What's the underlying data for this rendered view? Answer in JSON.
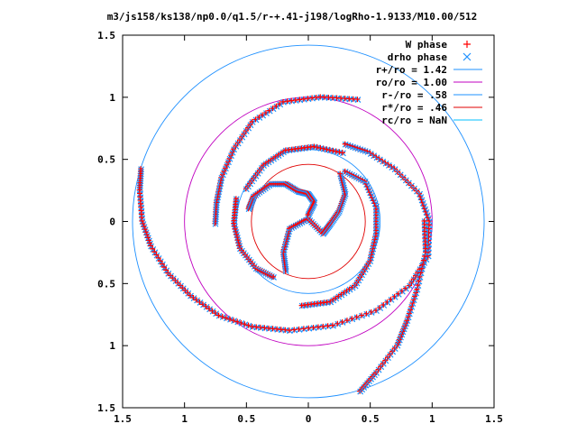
{
  "chart_data": {
    "type": "scatter",
    "title": "m3/js158/ks138/np0.0/q1.5/r-+.41-j198/logRho-1.9133/M10.00/512",
    "xlabel": "",
    "ylabel": "",
    "xlim": [
      -1.5,
      1.5
    ],
    "ylim": [
      -1.5,
      1.5
    ],
    "x_ticks": [
      -1.5,
      -1,
      -0.5,
      0,
      0.5,
      1,
      1.5
    ],
    "y_ticks": [
      -1.5,
      -1,
      -0.5,
      0,
      0.5,
      1,
      1.5
    ],
    "x_tick_labels": [
      "1.5",
      "1",
      "0.5",
      "0",
      "0.5",
      "1",
      "1.5"
    ],
    "y_tick_labels": [
      "1.5",
      "1",
      "0.5",
      "0",
      "0.5",
      "1",
      "1.5"
    ],
    "grid": false,
    "legend_position": "top-right",
    "series": [
      {
        "name": "W phase",
        "marker": "+",
        "color": "#ff0000"
      },
      {
        "name": "drho phase",
        "marker": "x",
        "color": "#1e90ff"
      }
    ],
    "circles": [
      {
        "label": "r+/ro = 1.42",
        "radius": 1.42,
        "color": "#1e90ff"
      },
      {
        "label": "ro/ro = 1.00",
        "radius": 1.0,
        "color": "#c000c0"
      },
      {
        "label": "r-/ro = .58",
        "radius": 0.58,
        "color": "#1e90ff"
      },
      {
        "label": "r*/ro = .46",
        "radius": 0.46,
        "color": "#e00000"
      },
      {
        "label": "rc/ro = NaN",
        "radius": null,
        "color": "#00bfff"
      }
    ],
    "arms": [
      {
        "points": [
          [
            -1.35,
            0.42
          ],
          [
            -1.36,
            0.25
          ],
          [
            -1.34,
            0.0
          ],
          [
            -1.27,
            -0.2
          ],
          [
            -1.13,
            -0.42
          ],
          [
            -0.95,
            -0.6
          ],
          [
            -0.72,
            -0.76
          ],
          [
            -0.45,
            -0.85
          ],
          [
            -0.15,
            -0.88
          ],
          [
            0.2,
            -0.84
          ],
          [
            0.55,
            -0.72
          ],
          [
            0.82,
            -0.52
          ],
          [
            0.97,
            -0.28
          ],
          [
            0.98,
            0.0
          ],
          [
            0.9,
            0.22
          ],
          [
            0.7,
            0.42
          ],
          [
            0.48,
            0.56
          ],
          [
            0.3,
            0.62
          ]
        ]
      },
      {
        "points": [
          [
            -0.75,
            -0.02
          ],
          [
            -0.74,
            0.15
          ],
          [
            -0.7,
            0.35
          ],
          [
            -0.6,
            0.58
          ],
          [
            -0.45,
            0.8
          ],
          [
            -0.2,
            0.96
          ],
          [
            0.1,
            1.0
          ],
          [
            0.4,
            0.98
          ]
        ]
      },
      {
        "points": [
          [
            0.42,
            -1.37
          ],
          [
            0.55,
            -1.22
          ],
          [
            0.72,
            -1.0
          ],
          [
            0.8,
            -0.8
          ],
          [
            0.88,
            -0.55
          ],
          [
            0.95,
            -0.25
          ],
          [
            0.94,
            0.0
          ]
        ]
      },
      {
        "points": [
          [
            -0.58,
            0.18
          ],
          [
            -0.6,
            -0.02
          ],
          [
            -0.55,
            -0.22
          ],
          [
            -0.42,
            -0.38
          ],
          [
            -0.28,
            -0.45
          ]
        ]
      },
      {
        "points": [
          [
            -0.5,
            0.26
          ],
          [
            -0.36,
            0.45
          ],
          [
            -0.18,
            0.57
          ],
          [
            0.05,
            0.6
          ],
          [
            0.28,
            0.55
          ]
        ]
      },
      {
        "points": [
          [
            -0.05,
            -0.68
          ],
          [
            0.18,
            -0.65
          ],
          [
            0.38,
            -0.52
          ],
          [
            0.5,
            -0.32
          ],
          [
            0.55,
            -0.1
          ],
          [
            0.55,
            0.12
          ],
          [
            0.46,
            0.32
          ],
          [
            0.3,
            0.4
          ]
        ]
      },
      {
        "points": [
          [
            -0.18,
            -0.4
          ],
          [
            -0.2,
            -0.25
          ],
          [
            -0.15,
            -0.06
          ],
          [
            0.0,
            0.02
          ],
          [
            0.12,
            -0.1
          ],
          [
            0.18,
            -0.02
          ],
          [
            0.25,
            0.08
          ],
          [
            0.3,
            0.22
          ],
          [
            0.26,
            0.38
          ]
        ]
      },
      {
        "points": [
          [
            -0.48,
            0.1
          ],
          [
            -0.44,
            0.2
          ],
          [
            -0.3,
            0.3
          ],
          [
            -0.18,
            0.3
          ],
          [
            -0.08,
            0.24
          ],
          [
            0.0,
            0.22
          ],
          [
            0.05,
            0.15
          ],
          [
            0.0,
            0.05
          ]
        ]
      }
    ]
  }
}
